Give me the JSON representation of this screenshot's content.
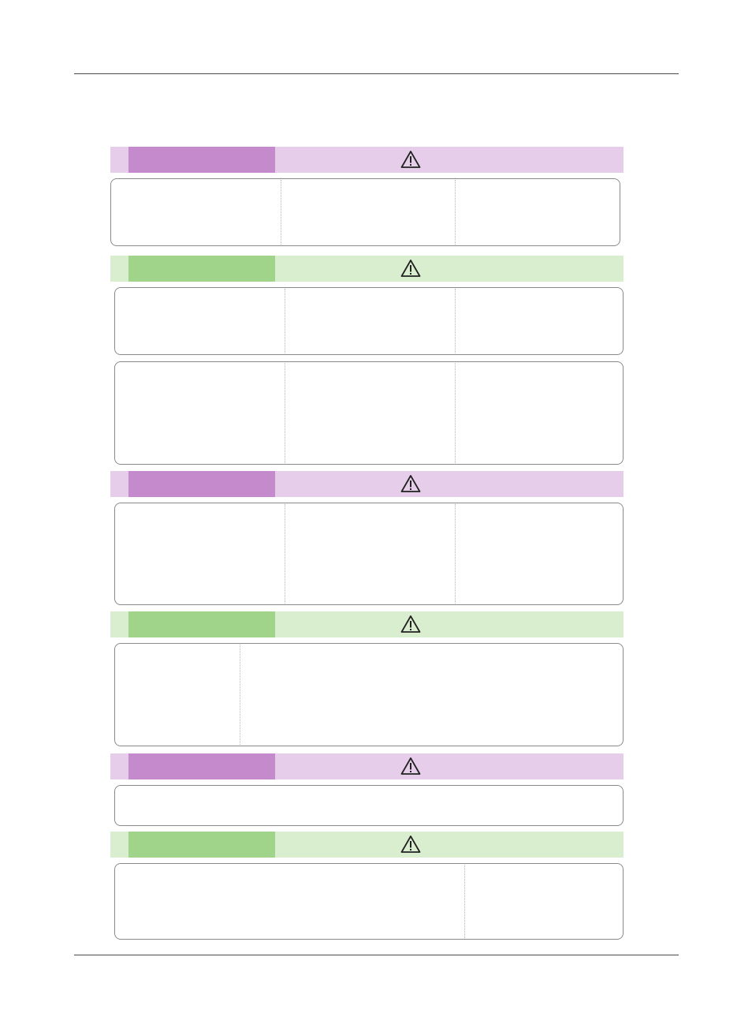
{
  "colors": {
    "purple_tab": "#c48acb",
    "purple_band": "#e6cde9",
    "green_tab": "#a0d48a",
    "green_band": "#d9edcf",
    "rule": "#4a4a4a",
    "panel_border": "#8a8a8a"
  },
  "sections": [
    {
      "id": "s1",
      "theme": "purple",
      "icon": "warning-triangle-icon",
      "panels": [
        {
          "columns": 3
        }
      ]
    },
    {
      "id": "s2",
      "theme": "green",
      "icon": "warning-triangle-icon",
      "panels": [
        {
          "columns": 3
        },
        {
          "columns": 3
        }
      ]
    },
    {
      "id": "s3",
      "theme": "purple",
      "icon": "warning-triangle-icon",
      "panels": [
        {
          "columns": 3
        }
      ]
    },
    {
      "id": "s4",
      "theme": "green",
      "icon": "warning-triangle-icon",
      "panels": [
        {
          "columns": 2
        }
      ]
    },
    {
      "id": "s5",
      "theme": "purple",
      "icon": "warning-triangle-icon",
      "panels": [
        {
          "columns": 1
        }
      ]
    },
    {
      "id": "s6",
      "theme": "green",
      "icon": "warning-triangle-icon",
      "panels": [
        {
          "columns": 2
        }
      ]
    }
  ]
}
